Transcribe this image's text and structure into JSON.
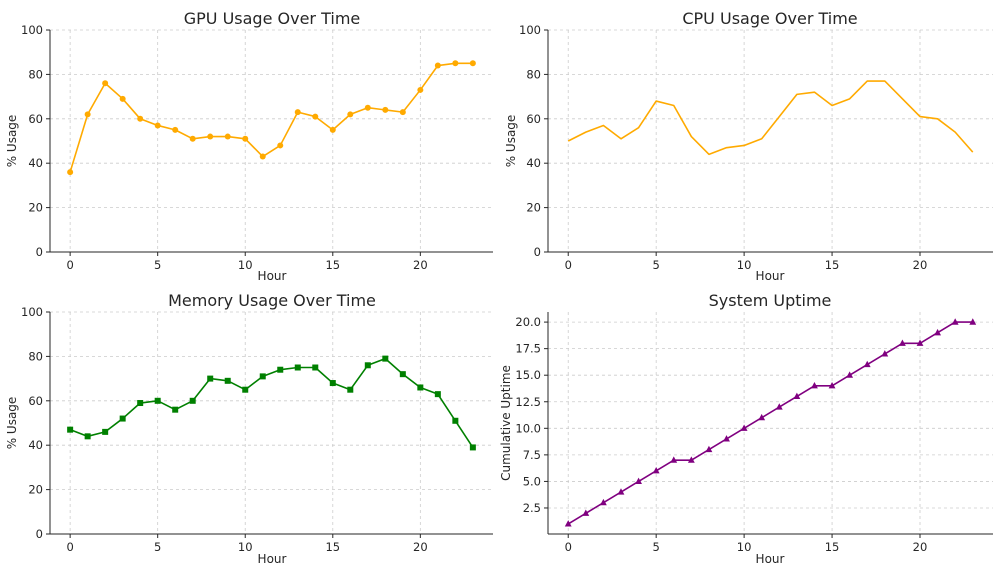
{
  "chart_data": [
    {
      "type": "line",
      "title": "GPU Usage Over Time",
      "xlabel": "Hour",
      "ylabel": "% Usage",
      "color": "#ffaa00",
      "marker": "circle",
      "xlim": [
        -1.15,
        24.15
      ],
      "ylim": [
        0,
        100
      ],
      "xticks": [
        0,
        5,
        10,
        15,
        20
      ],
      "yticks": [
        0,
        20,
        40,
        60,
        80,
        100
      ],
      "ytick_labels": [
        "0",
        "20",
        "40",
        "60",
        "80",
        "100"
      ],
      "grid": true,
      "x": [
        0,
        1,
        2,
        3,
        4,
        5,
        6,
        7,
        8,
        9,
        10,
        11,
        12,
        13,
        14,
        15,
        16,
        17,
        18,
        19,
        20,
        21,
        22,
        23
      ],
      "values": [
        36,
        62,
        76,
        69,
        60,
        57,
        55,
        51,
        52,
        52,
        51,
        43,
        48,
        63,
        61,
        55,
        62,
        65,
        64,
        63,
        73,
        84,
        85,
        85
      ]
    },
    {
      "type": "line",
      "title": "CPU Usage Over Time",
      "xlabel": "Hour",
      "ylabel": "% Usage",
      "color": "#ffaa00",
      "marker": "none",
      "xlim": [
        -1.15,
        24.15
      ],
      "ylim": [
        0,
        100
      ],
      "xticks": [
        0,
        5,
        10,
        15,
        20
      ],
      "yticks": [
        0,
        20,
        40,
        60,
        80,
        100
      ],
      "ytick_labels": [
        "0",
        "20",
        "40",
        "60",
        "80",
        "100"
      ],
      "grid": true,
      "x": [
        0,
        1,
        2,
        3,
        4,
        5,
        6,
        7,
        8,
        9,
        10,
        11,
        12,
        13,
        14,
        15,
        16,
        17,
        18,
        19,
        20,
        21,
        22,
        23
      ],
      "values": [
        50,
        54,
        57,
        51,
        56,
        68,
        66,
        52,
        44,
        47,
        48,
        51,
        61,
        71,
        72,
        66,
        69,
        77,
        77,
        69,
        61,
        60,
        54,
        45
      ]
    },
    {
      "type": "line",
      "title": "Memory Usage Over Time",
      "xlabel": "Hour",
      "ylabel": "% Usage",
      "color": "#008000",
      "marker": "square",
      "xlim": [
        -1.15,
        24.15
      ],
      "ylim": [
        0,
        100
      ],
      "xticks": [
        0,
        5,
        10,
        15,
        20
      ],
      "yticks": [
        0,
        20,
        40,
        60,
        80,
        100
      ],
      "ytick_labels": [
        "0",
        "20",
        "40",
        "60",
        "80",
        "100"
      ],
      "grid": true,
      "x": [
        0,
        1,
        2,
        3,
        4,
        5,
        6,
        7,
        8,
        9,
        10,
        11,
        12,
        13,
        14,
        15,
        16,
        17,
        18,
        19,
        20,
        21,
        22,
        23
      ],
      "values": [
        47,
        44,
        46,
        52,
        59,
        60,
        56,
        60,
        70,
        69,
        65,
        71,
        74,
        75,
        75,
        68,
        65,
        76,
        79,
        72,
        66,
        63,
        51,
        39
      ]
    },
    {
      "type": "line",
      "title": "System Uptime",
      "xlabel": "Hour",
      "ylabel": "Cumulative Uptime",
      "color": "#800080",
      "marker": "triangle",
      "xlim": [
        -1.15,
        24.15
      ],
      "ylim": [
        0.05,
        20.95
      ],
      "xticks": [
        0,
        5,
        10,
        15,
        20
      ],
      "yticks": [
        2.5,
        5.0,
        7.5,
        10.0,
        12.5,
        15.0,
        17.5,
        20.0
      ],
      "ytick_labels": [
        "2.5",
        "5.0",
        "7.5",
        "10.0",
        "12.5",
        "15.0",
        "17.5",
        "20.0"
      ],
      "grid": true,
      "x": [
        0,
        1,
        2,
        3,
        4,
        5,
        6,
        7,
        8,
        9,
        10,
        11,
        12,
        13,
        14,
        15,
        16,
        17,
        18,
        19,
        20,
        21,
        22,
        23
      ],
      "values": [
        1,
        2,
        3,
        4,
        5,
        6,
        7,
        7,
        8,
        9,
        10,
        11,
        12,
        13,
        14,
        14,
        15,
        16,
        17,
        18,
        18,
        19,
        20,
        20
      ]
    }
  ]
}
